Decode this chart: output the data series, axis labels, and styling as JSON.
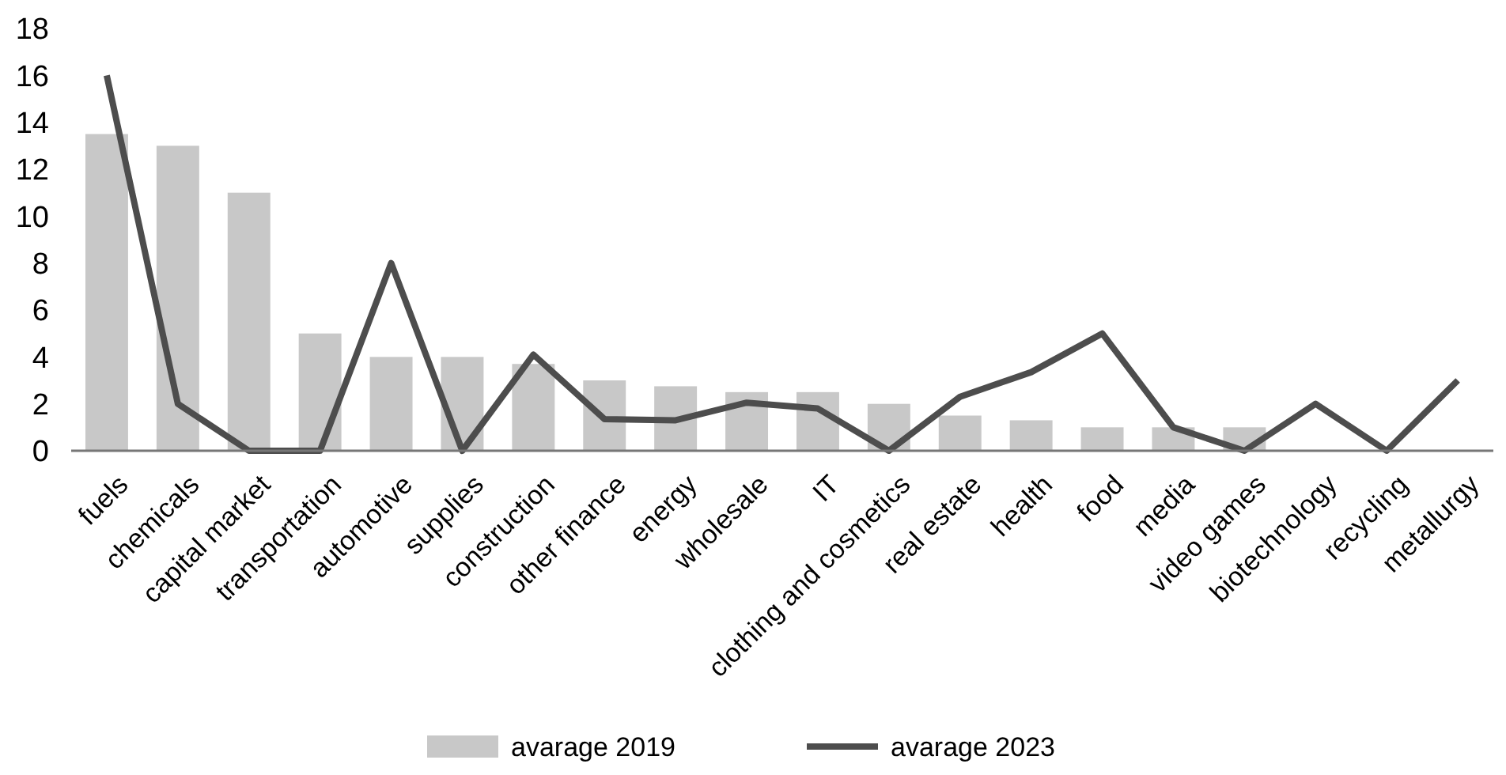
{
  "chart_data": {
    "type": "bar",
    "categories": [
      "fuels",
      "chemicals",
      "capital market",
      "transportation",
      "automotive",
      "supplies",
      "construction",
      "other finance",
      "energy",
      "wholesale",
      "IT",
      "clothing and cosmetics",
      "real estate",
      "health",
      "food",
      "media",
      "video games",
      "biotechnology",
      "recycling",
      "metallurgy"
    ],
    "series": [
      {
        "name": "avarage 2019",
        "color": "#c8c8c8",
        "values": [
          13.5,
          13,
          11,
          5,
          4,
          4,
          3.7,
          3,
          2.75,
          2.5,
          2.5,
          2,
          1.5,
          1.3,
          1,
          1,
          1,
          0,
          0,
          0
        ]
      },
      {
        "name": "avarage 2023",
        "type": "line",
        "color": "#4d4d4d",
        "values": [
          16,
          2,
          0,
          0,
          8,
          0,
          4.1,
          1.35,
          1.3,
          2.05,
          1.8,
          0,
          2.3,
          3.35,
          5,
          1,
          0,
          2,
          0,
          3
        ]
      }
    ],
    "ylim": [
      0,
      18
    ],
    "yticks": [
      0,
      2,
      4,
      6,
      8,
      10,
      12,
      14,
      16,
      18
    ],
    "grid": false,
    "legend": "bottom",
    "marker": "none",
    "line_style": "solid"
  }
}
